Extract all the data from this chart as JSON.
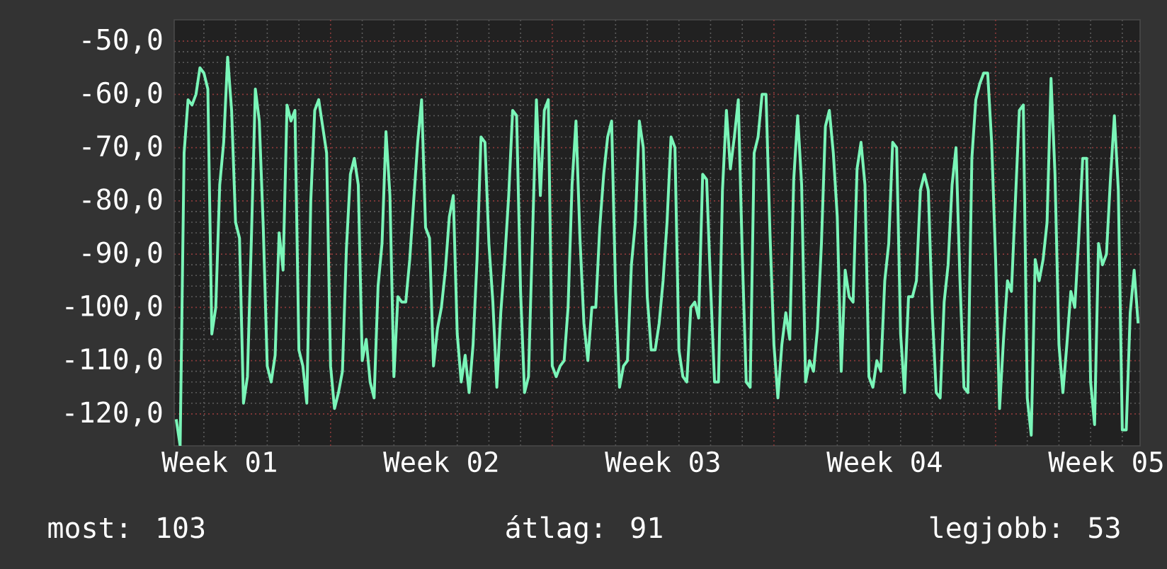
{
  "chart_data": {
    "type": "line",
    "categories": [
      null,
      null,
      null,
      null,
      null,
      null,
      null,
      null,
      null,
      null,
      null,
      "Week 01",
      null,
      null,
      null,
      null,
      null,
      null,
      null,
      null,
      null,
      null,
      null,
      null,
      null,
      null,
      null,
      null,
      null,
      null,
      null,
      null,
      null,
      null,
      null,
      null,
      null,
      null,
      null,
      null,
      null,
      null,
      null,
      null,
      null,
      null,
      null,
      null,
      null,
      null,
      null,
      null,
      null,
      null,
      null,
      null,
      null,
      null,
      null,
      null,
      null,
      null,
      null,
      null,
      null,
      null,
      null,
      "Week 02",
      null,
      null,
      null,
      null,
      null,
      null,
      null,
      null,
      null,
      null,
      null,
      null,
      null,
      null,
      null,
      null,
      null,
      null,
      null,
      null,
      null,
      null,
      null,
      null,
      null,
      null,
      null,
      null,
      null,
      null,
      null,
      null,
      null,
      null,
      null,
      null,
      null,
      null,
      null,
      null,
      null,
      null,
      null,
      null,
      null,
      null,
      null,
      null,
      null,
      null,
      null,
      null,
      null,
      null,
      null,
      "Week 03",
      null,
      null,
      null,
      null,
      null,
      null,
      null,
      null,
      null,
      null,
      null,
      null,
      null,
      null,
      null,
      null,
      null,
      null,
      null,
      null,
      null,
      null,
      null,
      null,
      null,
      null,
      null,
      null,
      null,
      null,
      null,
      null,
      null,
      null,
      null,
      null,
      null,
      null,
      null,
      null,
      null,
      null,
      null,
      null,
      null,
      null,
      null,
      null,
      null,
      null,
      null,
      null,
      null,
      null,
      null,
      "Week 04",
      null,
      null,
      null,
      null,
      null,
      null,
      null,
      null,
      null,
      null,
      null,
      null,
      null,
      null,
      null,
      null,
      null,
      null,
      null,
      null,
      null,
      null,
      null,
      null,
      null,
      null,
      null,
      null,
      null,
      null,
      null,
      null,
      null,
      null,
      null,
      null,
      null,
      null,
      null,
      null,
      null,
      null,
      null,
      null,
      null,
      null,
      null,
      null,
      null,
      null,
      null,
      null,
      null,
      null,
      null,
      "Week 05",
      null,
      null,
      null,
      null,
      null,
      null,
      null,
      null
    ],
    "values": [
      -121,
      -126,
      -71,
      -61,
      -62,
      -60,
      -55,
      -56,
      -59,
      -105,
      -100,
      -77,
      -69,
      -53,
      -63,
      -84,
      -87,
      -118,
      -113,
      -87,
      -59,
      -65,
      -85,
      -111,
      -114,
      -109,
      -86,
      -93,
      -62,
      -65,
      -63,
      -108,
      -111,
      -118,
      -80,
      -63,
      -61,
      -66,
      -71,
      -111,
      -119,
      -116,
      -112,
      -89,
      -75,
      -72,
      -77,
      -110,
      -106,
      -114,
      -117,
      -96,
      -88,
      -67,
      -79,
      -113,
      -98,
      -99,
      -99,
      -91,
      -80,
      -69,
      -61,
      -85,
      -87,
      -111,
      -104,
      -100,
      -93,
      -83,
      -79,
      -105,
      -114,
      -109,
      -116,
      -107,
      -91,
      -68,
      -69,
      -88,
      -99,
      -115,
      -101,
      -91,
      -79,
      -63,
      -64,
      -97,
      -116,
      -113,
      -87,
      -61,
      -79,
      -63,
      -61,
      -111,
      -113,
      -111,
      -110,
      -100,
      -77,
      -65,
      -87,
      -103,
      -110,
      -100,
      -100,
      -85,
      -75,
      -68,
      -65,
      -97,
      -115,
      -111,
      -110,
      -92,
      -84,
      -65,
      -70,
      -98,
      -108,
      -108,
      -103,
      -95,
      -84,
      -68,
      -70,
      -108,
      -113,
      -114,
      -100,
      -99,
      -102,
      -75,
      -76,
      -96,
      -114,
      -114,
      -78,
      -63,
      -74,
      -68,
      -61,
      -90,
      -114,
      -115,
      -71,
      -68,
      -60,
      -60,
      -86,
      -107,
      -117,
      -107,
      -101,
      -106,
      -76,
      -64,
      -77,
      -114,
      -110,
      -112,
      -104,
      -88,
      -66,
      -63,
      -71,
      -83,
      -112,
      -93,
      -98,
      -99,
      -74,
      -69,
      -77,
      -113,
      -115,
      -110,
      -112,
      -95,
      -88,
      -69,
      -70,
      -105,
      -116,
      -98,
      -98,
      -95,
      -78,
      -75,
      -78,
      -101,
      -116,
      -117,
      -99,
      -92,
      -77,
      -70,
      -95,
      -115,
      -116,
      -72,
      -61,
      -58,
      -56,
      -56,
      -69,
      -91,
      -119,
      -106,
      -95,
      -97,
      -80,
      -63,
      -62,
      -117,
      -124,
      -91,
      -95,
      -91,
      -84,
      -57,
      -75,
      -107,
      -116,
      -107,
      -97,
      -100,
      -87,
      -72,
      -72,
      -114,
      -122,
      -88,
      -92,
      -90,
      -76,
      -64,
      -78,
      -123,
      -123,
      -101,
      -93,
      -103
    ],
    "color": "#7af5b8",
    "ylim": [
      -126,
      -46
    ],
    "yticks": [
      {
        "value": -50,
        "label": "-50,0"
      },
      {
        "value": -60,
        "label": "-60,0"
      },
      {
        "value": -70,
        "label": "-70,0"
      },
      {
        "value": -80,
        "label": "-80,0"
      },
      {
        "value": -90,
        "label": "-90,0"
      },
      {
        "value": -100,
        "label": "-100,0"
      },
      {
        "value": -110,
        "label": "-110,0"
      },
      {
        "value": -120,
        "label": "-120,0"
      }
    ],
    "grid": true,
    "annotations": [
      "most: 103",
      "átlag: 91",
      "legjobb: 53"
    ]
  }
}
